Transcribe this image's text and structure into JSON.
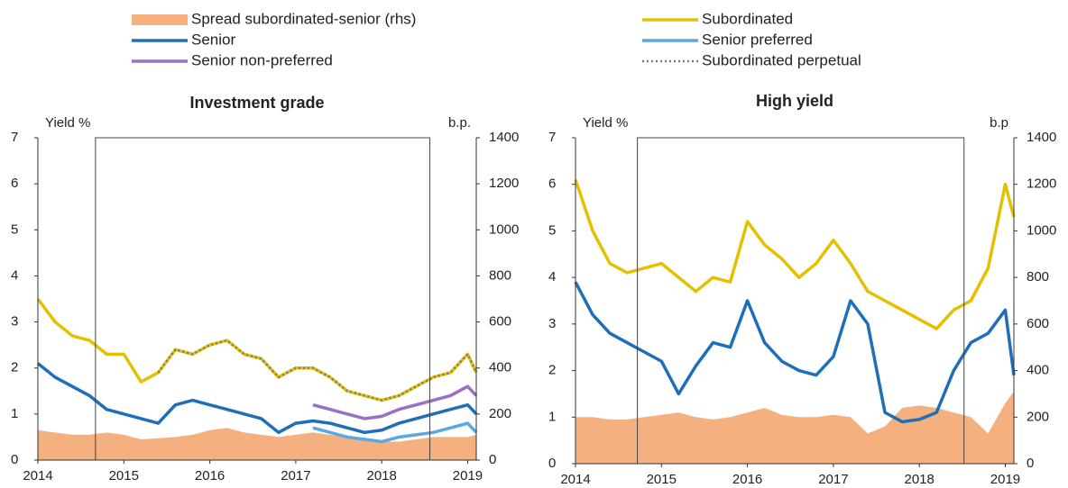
{
  "chart_data": [
    {
      "type": "line",
      "title": "Investment grade",
      "ylabel": "Yield %",
      "y2label": "b.p.",
      "x": [
        2014.0,
        2014.2,
        2014.4,
        2014.6,
        2014.8,
        2015.0,
        2015.2,
        2015.4,
        2015.6,
        2015.8,
        2016.0,
        2016.2,
        2016.4,
        2016.6,
        2016.8,
        2017.0,
        2017.2,
        2017.4,
        2017.6,
        2017.8,
        2018.0,
        2018.2,
        2018.4,
        2018.6,
        2018.8,
        2019.0,
        2019.1
      ],
      "xlim": [
        2014,
        2019.1
      ],
      "xticks": [
        2014,
        2015,
        2016,
        2017,
        2018,
        2019
      ],
      "ylim": [
        0,
        7
      ],
      "yticks": [
        0,
        1,
        2,
        3,
        4,
        5,
        6,
        7
      ],
      "y2lim": [
        0,
        1400
      ],
      "y2ticks": [
        0,
        200,
        400,
        600,
        800,
        1000,
        1200,
        1400
      ],
      "highlight_span": [
        2014.67,
        2018.56
      ],
      "series": [
        {
          "name": "Spread subordinated-senior (rhs)",
          "color": "#f5b07f",
          "kind": "area",
          "axis": "y2",
          "values": [
            130,
            120,
            110,
            110,
            120,
            110,
            90,
            95,
            100,
            110,
            130,
            140,
            120,
            110,
            100,
            110,
            120,
            110,
            100,
            90,
            80,
            80,
            90,
            100,
            100,
            100,
            110
          ]
        },
        {
          "name": "Senior",
          "color": "#1f6fb8",
          "kind": "line",
          "values": [
            2.1,
            1.8,
            1.6,
            1.4,
            1.1,
            1.0,
            0.9,
            0.8,
            1.2,
            1.3,
            1.2,
            1.1,
            1.0,
            0.9,
            0.6,
            0.8,
            0.85,
            0.8,
            0.7,
            0.6,
            0.65,
            0.8,
            0.9,
            1.0,
            1.1,
            1.2,
            1.0
          ]
        },
        {
          "name": "Senior non-preferred",
          "color": "#9b6fc4",
          "kind": "line",
          "values": [
            null,
            null,
            null,
            null,
            null,
            null,
            null,
            null,
            null,
            null,
            null,
            null,
            null,
            null,
            null,
            null,
            1.2,
            1.1,
            1.0,
            0.9,
            0.95,
            1.1,
            1.2,
            1.3,
            1.4,
            1.6,
            1.4
          ]
        },
        {
          "name": "Subordinated",
          "color": "#e5c000",
          "kind": "line",
          "values": [
            3.5,
            3.0,
            2.7,
            2.6,
            2.3,
            2.3,
            1.7,
            1.9,
            2.4,
            2.3,
            2.5,
            2.6,
            2.3,
            2.2,
            1.8,
            2.0,
            2.0,
            1.8,
            1.5,
            1.4,
            1.3,
            1.4,
            1.6,
            1.8,
            1.9,
            2.3,
            1.9
          ]
        },
        {
          "name": "Senior preferred",
          "color": "#5ba7e0",
          "kind": "line",
          "values": [
            null,
            null,
            null,
            null,
            null,
            null,
            null,
            null,
            null,
            null,
            null,
            null,
            null,
            null,
            null,
            null,
            0.7,
            0.6,
            0.5,
            0.45,
            0.4,
            0.5,
            0.55,
            0.6,
            0.7,
            0.8,
            0.6
          ]
        },
        {
          "name": "Subordinated perpetual",
          "color": "#7a7a7a",
          "kind": "line",
          "line_style": "dotted",
          "values": [
            null,
            null,
            null,
            null,
            null,
            null,
            null,
            1.9,
            2.4,
            2.3,
            2.5,
            2.6,
            2.3,
            2.2,
            1.8,
            2.0,
            2.0,
            1.8,
            1.5,
            1.4,
            1.3,
            1.4,
            1.6,
            1.8,
            1.9,
            2.3,
            1.9
          ]
        }
      ]
    },
    {
      "type": "line",
      "title": "High yield",
      "ylabel": "Yield %",
      "y2label": "b.p",
      "x": [
        2014.0,
        2014.2,
        2014.4,
        2014.6,
        2014.8,
        2015.0,
        2015.2,
        2015.4,
        2015.6,
        2015.8,
        2016.0,
        2016.2,
        2016.4,
        2016.6,
        2016.8,
        2017.0,
        2017.2,
        2017.4,
        2017.6,
        2017.8,
        2018.0,
        2018.2,
        2018.4,
        2018.6,
        2018.8,
        2019.0,
        2019.1
      ],
      "xlim": [
        2014,
        2019.1
      ],
      "xticks": [
        2014,
        2015,
        2016,
        2017,
        2018,
        2019
      ],
      "ylim": [
        0,
        7
      ],
      "yticks": [
        0,
        1,
        2,
        3,
        4,
        5,
        6,
        7
      ],
      "y2lim": [
        0,
        1400
      ],
      "y2ticks": [
        0,
        200,
        400,
        600,
        800,
        1000,
        1200,
        1400
      ],
      "highlight_span": [
        2014.72,
        2018.52
      ],
      "series": [
        {
          "color": "#f5b07f",
          "kind": "area",
          "axis": "y2",
          "values": [
            200,
            200,
            190,
            190,
            200,
            210,
            220,
            200,
            190,
            200,
            220,
            240,
            210,
            200,
            200,
            210,
            200,
            130,
            160,
            240,
            250,
            240,
            220,
            200,
            130,
            260,
            310
          ]
        },
        {
          "color": "#1f6fb8",
          "kind": "line",
          "values": [
            3.9,
            3.2,
            2.8,
            2.6,
            2.4,
            2.2,
            1.5,
            2.1,
            2.6,
            2.5,
            3.5,
            2.6,
            2.2,
            2.0,
            1.9,
            2.3,
            3.5,
            3.0,
            1.1,
            0.9,
            0.95,
            1.1,
            2.0,
            2.6,
            2.8,
            3.3,
            1.9
          ]
        },
        {
          "color": "#e5c000",
          "kind": "line",
          "values": [
            6.1,
            5.0,
            4.3,
            4.1,
            4.2,
            4.3,
            4.0,
            3.7,
            4.0,
            3.9,
            5.2,
            4.7,
            4.4,
            4.0,
            4.3,
            4.8,
            4.3,
            3.7,
            3.5,
            3.3,
            3.1,
            2.9,
            3.3,
            3.5,
            4.2,
            6.0,
            5.3
          ]
        }
      ]
    }
  ]
}
